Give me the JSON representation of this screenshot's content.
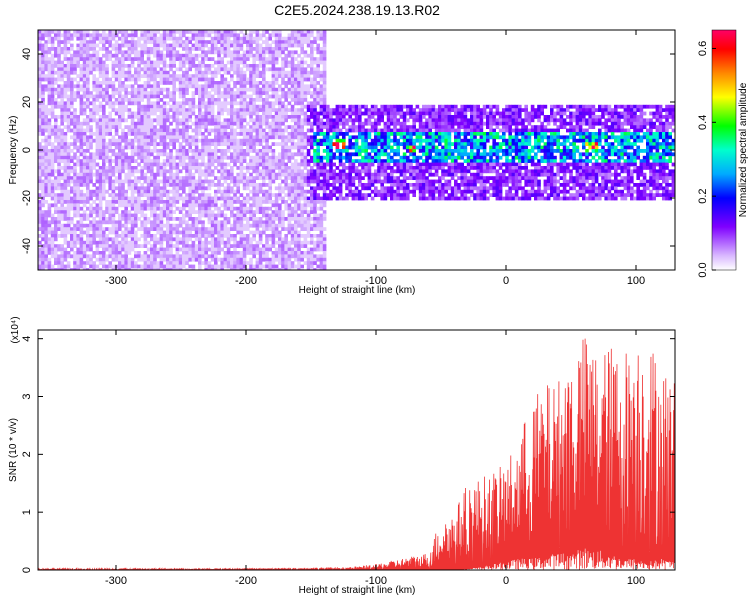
{
  "figure_title": "C2E5.2024.238.19.13.R02",
  "chart_data": [
    {
      "type": "heatmap",
      "title": "C2E5.2024.238.19.13.R02",
      "xlabel": "Height of straight line (km)",
      "ylabel": "Frequency (Hz)",
      "xlim": [
        -360,
        130
      ],
      "ylim": [
        -50,
        50
      ],
      "x_ticks": [
        -300,
        -200,
        -100,
        0,
        100
      ],
      "y_ticks": [
        -40,
        -20,
        0,
        20,
        40
      ],
      "colorbar": {
        "label": "Normalized spectral amplitude",
        "range": [
          0.0,
          0.65
        ],
        "ticks": [
          0.0,
          0.2,
          0.4,
          0.6
        ],
        "palette": [
          "#d9b8ff",
          "#7f00ff",
          "#0000ff",
          "#00aaff",
          "#00ffcc",
          "#00ff00",
          "#ffff00",
          "#ff8800",
          "#ff0000",
          "#ff0066"
        ]
      },
      "regions": [
        {
          "x_range": [
            -360,
            -140
          ],
          "y_range": [
            -50,
            50
          ],
          "level": 0.08,
          "description": "broadband noise"
        },
        {
          "x_range": [
            -155,
            130
          ],
          "y_range": [
            -20,
            20
          ],
          "level": 0.12
        },
        {
          "x_range": [
            -150,
            130
          ],
          "y_range": [
            -5,
            8
          ],
          "level": 0.3
        },
        {
          "x_range": [
            -135,
            -125
          ],
          "y_range": [
            1,
            6
          ],
          "level": 0.62
        },
        {
          "x_range": [
            -75,
            -70
          ],
          "y_range": [
            -1,
            3
          ],
          "level": 0.55
        },
        {
          "x_range": [
            60,
            70
          ],
          "y_range": [
            0,
            4
          ],
          "level": 0.6
        }
      ]
    },
    {
      "type": "line",
      "xlabel": "Height of straight line (km)",
      "ylabel": "SNR (10 * v/v)",
      "y_multiplier": "(x10⁴)",
      "xlim": [
        -360,
        130
      ],
      "ylim": [
        0,
        4.15
      ],
      "x_ticks": [
        -300,
        -200,
        -100,
        0,
        100
      ],
      "y_ticks": [
        0,
        1,
        2,
        3,
        4
      ],
      "color": "#ee3333",
      "envelope": {
        "x": [
          -360,
          -200,
          -120,
          -100,
          -80,
          -60,
          -50,
          -40,
          -30,
          -20,
          -10,
          0,
          10,
          20,
          30,
          40,
          50,
          60,
          70,
          80,
          90,
          100,
          110,
          120,
          130
        ],
        "max": [
          0.02,
          0.03,
          0.05,
          0.1,
          0.2,
          0.3,
          0.9,
          1.0,
          1.5,
          1.6,
          1.7,
          1.85,
          2.3,
          3.0,
          3.2,
          3.3,
          3.7,
          4.1,
          3.8,
          3.9,
          3.8,
          4.1,
          4.0,
          3.6,
          3.3
        ],
        "min": [
          0.0,
          0.0,
          0.0,
          0.0,
          0.0,
          0.0,
          0.0,
          0.0,
          0.02,
          0.05,
          0.1,
          0.15,
          0.2,
          0.2,
          0.25,
          0.3,
          0.3,
          0.4,
          0.35,
          0.3,
          0.2,
          0.2,
          0.15,
          0.2,
          0.15
        ]
      }
    }
  ]
}
